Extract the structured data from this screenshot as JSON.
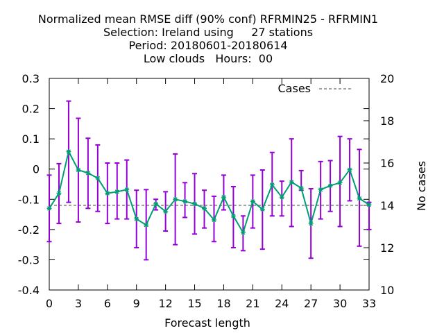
{
  "chart_data": {
    "type": "line",
    "title_lines": [
      "Normalized mean RMSE diff (90% conf) RFRMIN25 - RFRMIN1",
      "Selection: Ireland using     27 stations",
      "Period: 20180601-20180614",
      "Low clouds   Hours:  00"
    ],
    "xlabel": "Forecast length",
    "ylabel": "",
    "y2label": "No cases",
    "xlim": [
      0,
      33
    ],
    "ylim": [
      -0.4,
      0.3
    ],
    "y2lim": [
      10,
      20
    ],
    "xticks": [
      0,
      3,
      6,
      9,
      12,
      15,
      18,
      21,
      24,
      27,
      30,
      33
    ],
    "yticks": [
      -0.4,
      -0.3,
      -0.2,
      -0.1,
      0,
      0.1,
      0.2,
      0.3
    ],
    "ytick_labels": [
      "-0.4",
      "-0.3",
      "-0.2",
      "-0.1",
      "0",
      "0.1",
      "0.2",
      "0.3"
    ],
    "y2ticks": [
      10,
      12,
      14,
      16,
      18,
      20
    ],
    "grid": false,
    "legend": {
      "position": "top-right",
      "entries": [
        "Cases"
      ]
    },
    "series": [
      {
        "name": "RMSE diff",
        "color": "#009e73",
        "errorbar_color": "#9400d3",
        "x": [
          0,
          1,
          2,
          3,
          4,
          5,
          6,
          7,
          8,
          9,
          10,
          11,
          12,
          13,
          14,
          15,
          16,
          17,
          18,
          19,
          20,
          21,
          22,
          23,
          24,
          25,
          26,
          27,
          28,
          29,
          30,
          31,
          32,
          33
        ],
        "y": [
          -0.13,
          -0.08,
          0.058,
          -0.003,
          -0.013,
          -0.03,
          -0.08,
          -0.075,
          -0.068,
          -0.165,
          -0.185,
          -0.115,
          -0.14,
          -0.1,
          -0.107,
          -0.115,
          -0.13,
          -0.168,
          -0.093,
          -0.155,
          -0.21,
          -0.107,
          -0.133,
          -0.052,
          -0.093,
          -0.043,
          -0.063,
          -0.18,
          -0.068,
          -0.055,
          -0.045,
          -0.002,
          -0.097,
          -0.118
        ],
        "y_low": [
          -0.24,
          -0.18,
          -0.11,
          -0.175,
          -0.13,
          -0.14,
          -0.18,
          -0.165,
          -0.165,
          -0.26,
          -0.3,
          -0.135,
          -0.205,
          -0.25,
          -0.16,
          -0.215,
          -0.195,
          -0.24,
          -0.135,
          -0.26,
          -0.27,
          -0.195,
          -0.265,
          -0.155,
          -0.155,
          -0.19,
          -0.07,
          -0.295,
          -0.165,
          -0.14,
          -0.19,
          -0.105,
          -0.255,
          -0.2
        ],
        "y_high": [
          -0.02,
          0.018,
          0.225,
          0.168,
          0.102,
          0.08,
          0.02,
          0.02,
          0.03,
          -0.07,
          -0.068,
          -0.1,
          -0.075,
          0.05,
          -0.045,
          -0.015,
          -0.07,
          -0.09,
          -0.02,
          -0.058,
          -0.155,
          -0.02,
          -0.003,
          0.055,
          -0.04,
          0.1,
          -0.005,
          -0.065,
          0.025,
          0.028,
          0.108,
          0.1,
          0.065,
          -0.11
        ]
      },
      {
        "name": "Cases",
        "axis": "y2",
        "color": "#808080",
        "dash": "dashed",
        "x": [
          0,
          33
        ],
        "y": [
          14,
          14
        ]
      }
    ]
  }
}
